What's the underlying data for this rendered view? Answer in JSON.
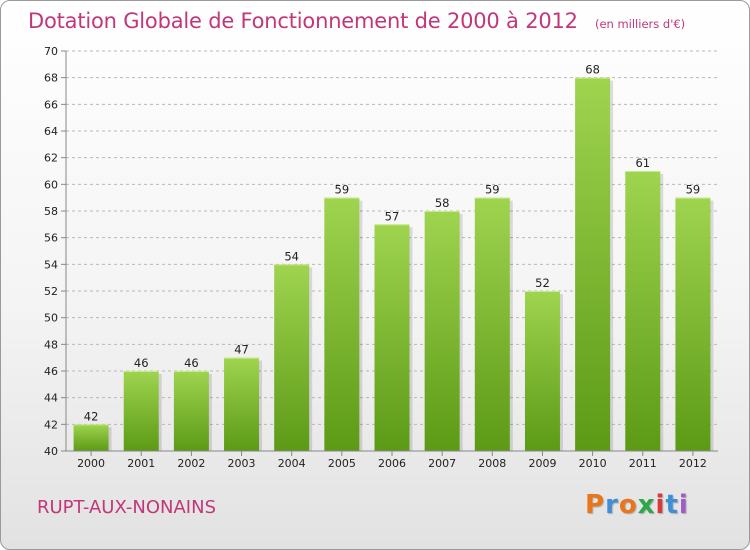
{
  "header": {
    "title": "Dotation Globale de Fonctionnement de 2000 à 2012",
    "unit": "(en milliers d'€)"
  },
  "footer": {
    "commune": "RUPT-AUX-NONAINS",
    "logo_text": "Proxiti",
    "logo_colors": [
      "#e8761a",
      "#3f8fd6",
      "#e8761a",
      "#2aa84a",
      "#d83a3a",
      "#3f8fd6",
      "#a35bc8"
    ]
  },
  "colors": {
    "title": "#c2367a",
    "bar_top": "#9fd44f",
    "bar_bottom": "#5c9a16",
    "grid": "#b8b8b8"
  },
  "chart_data": {
    "type": "bar",
    "title": "Dotation Globale de Fonctionnement de 2000 à 2012",
    "subtitle": "(en milliers d'€)",
    "categories": [
      "2000",
      "2001",
      "2002",
      "2003",
      "2004",
      "2005",
      "2006",
      "2007",
      "2008",
      "2009",
      "2010",
      "2011",
      "2012"
    ],
    "values": [
      42,
      46,
      46,
      47,
      54,
      59,
      57,
      58,
      59,
      52,
      68,
      61,
      59
    ],
    "ylim": [
      40,
      70
    ],
    "ytick_step": 2,
    "grid": true,
    "grid_style": "dashed",
    "legend": "none"
  }
}
